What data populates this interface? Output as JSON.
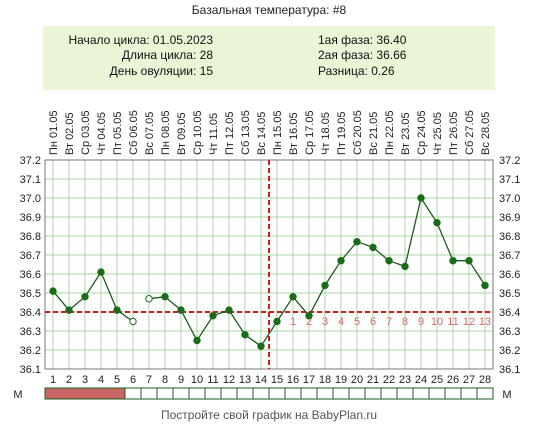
{
  "title": "Базальная температура: #8",
  "info": {
    "cycle_start": "Начало цикла: 01.05.2023",
    "cycle_length": "Длина цикла: 28",
    "ovulation_day": "День овуляции: 15",
    "phase1": "1ая фаза: 36.40",
    "phase2": "2ая фаза: 36.66",
    "difference": "Разница: 0.26"
  },
  "footer": "Постройте свой график на BabyPlan.ru",
  "chart_data": {
    "type": "line",
    "title": "Базальная температура: #8",
    "days": [
      1,
      2,
      3,
      4,
      5,
      6,
      7,
      8,
      9,
      10,
      11,
      12,
      13,
      14,
      15,
      16,
      17,
      18,
      19,
      20,
      21,
      22,
      23,
      24,
      25,
      26,
      27,
      28
    ],
    "dates": [
      "Пн 01.05",
      "Вт 02.05",
      "Ср 03.05",
      "Чт 04.05",
      "Пт 05.05",
      "Сб 06.05",
      "Вс 07.05",
      "Пн 08.05",
      "Вт 09.05",
      "Ср 10.05",
      "Чт 11.05",
      "Пт 12.05",
      "Сб 13.05",
      "Вс 14.05",
      "Пн 15.05",
      "Вт 16.05",
      "Ср 17.05",
      "Чт 18.05",
      "Пт 19.05",
      "Сб 20.05",
      "Вс 21.05",
      "Пн 22.05",
      "Вт 23.05",
      "Ср 24.05",
      "Чт 25.05",
      "Пт 26.05",
      "Сб 27.05",
      "Вс 28.05"
    ],
    "temperatures": [
      36.51,
      36.41,
      36.48,
      36.61,
      36.41,
      36.35,
      36.47,
      36.48,
      36.41,
      36.25,
      36.38,
      36.41,
      36.28,
      36.22,
      36.35,
      36.48,
      36.38,
      36.54,
      36.67,
      36.77,
      36.74,
      36.67,
      36.64,
      37.0,
      36.87,
      36.67,
      36.67,
      36.54
    ],
    "open_points": [
      6,
      7
    ],
    "segment_breaks": [
      6,
      7
    ],
    "ylim": [
      36.1,
      37.2
    ],
    "yticks": [
      "36.1",
      "36.2",
      "36.3",
      "36.4",
      "36.5",
      "36.6",
      "36.7",
      "36.8",
      "36.9",
      "37.0",
      "37.1",
      "37.2"
    ],
    "coverline": 36.4,
    "ovulation_line_day": 15,
    "phase2_labels": [
      "1",
      "2",
      "3",
      "4",
      "5",
      "6",
      "7",
      "8",
      "9",
      "10",
      "11",
      "12",
      "13"
    ],
    "menstruation_days": [
      1,
      2,
      3,
      4,
      5
    ],
    "m_label": "М",
    "grid": true,
    "colors": {
      "line": "#1a5c1a",
      "point": "#1a6b1a",
      "grid": "#a9d6a0",
      "border": "#777777",
      "coverline": "#d41a1a",
      "ovulation": "#d41a1a",
      "phase2_label": "#d46a6a",
      "menstruation": "#c96565",
      "info_bg": "#eaf5d8"
    }
  }
}
